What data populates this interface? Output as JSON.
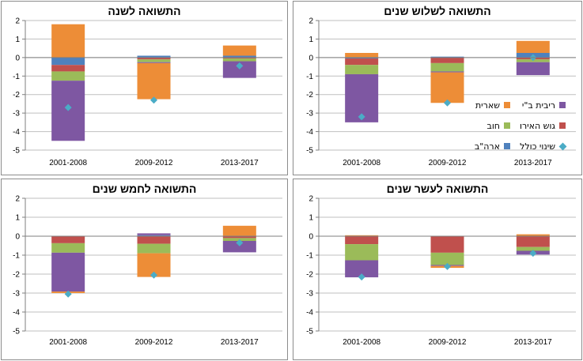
{
  "colors": {
    "residual": "#ED8D37",
    "interest": "#7E57A2",
    "euro_area": "#C0504D",
    "current_account": "#9BBB59",
    "usa": "#4F81BD",
    "total_change": "#4BACC6",
    "axis": "#7f7f7f",
    "grid": "#bfbfbf"
  },
  "legend": {
    "residual": "שארית",
    "interest": "ריבית ב\"י",
    "current_account": "חוב",
    "euro_area": "גוש האירו",
    "usa": "ארה\"ב",
    "total_change": "שינוי כולל"
  },
  "chart_data": [
    {
      "type": "bar",
      "title": "התשואה לשנה",
      "categories": [
        "2001-2008",
        "2009-2012",
        "2013-2017"
      ],
      "ylim": [
        -5,
        2
      ],
      "yticks": [
        "2",
        "1",
        "0",
        "-1",
        "-2",
        "-3",
        "-4",
        "-5"
      ],
      "stacked": true,
      "series": [
        {
          "key": "usa",
          "values": [
            -0.4,
            0.1,
            0.1
          ]
        },
        {
          "key": "euro_area",
          "values": [
            -0.35,
            -0.1,
            -0.05
          ]
        },
        {
          "key": "current_account",
          "values": [
            -0.5,
            -0.15,
            -0.15
          ]
        },
        {
          "key": "interest",
          "values": [
            -3.25,
            -0.05,
            -0.9
          ]
        },
        {
          "key": "residual",
          "values": [
            1.8,
            -1.95,
            0.55
          ]
        }
      ],
      "total": [
        -2.7,
        -2.3,
        -0.45
      ]
    },
    {
      "type": "bar",
      "title": "התשואה לשלוש שנים",
      "categories": [
        "2001-2008",
        "2009-2012",
        "2013-2017"
      ],
      "ylim": [
        -5,
        2
      ],
      "yticks": [
        "2",
        "1",
        "0",
        "-1",
        "-2",
        "-3",
        "-4",
        "-5"
      ],
      "stacked": true,
      "series": [
        {
          "key": "usa",
          "values": [
            -0.05,
            0.05,
            0.25
          ]
        },
        {
          "key": "euro_area",
          "values": [
            -0.35,
            -0.3,
            -0.1
          ]
        },
        {
          "key": "current_account",
          "values": [
            -0.5,
            -0.45,
            -0.15
          ]
        },
        {
          "key": "interest",
          "values": [
            -2.6,
            -0.05,
            -0.7
          ]
        },
        {
          "key": "residual",
          "values": [
            0.25,
            -1.65,
            0.65
          ]
        }
      ],
      "total": [
        -3.2,
        -2.45,
        0.0
      ]
    },
    {
      "type": "bar",
      "title": "התשואה לחמש שנים",
      "categories": [
        "2001-2008",
        "2009-2012",
        "2013-2017"
      ],
      "ylim": [
        -5,
        2
      ],
      "yticks": [
        "2",
        "1",
        "0",
        "-1",
        "-2",
        "-3",
        "-4",
        "-5"
      ],
      "stacked": true,
      "series": [
        {
          "key": "usa",
          "values": [
            -0.02,
            0.05,
            0.0
          ]
        },
        {
          "key": "euro_area",
          "values": [
            -0.35,
            -0.4,
            -0.1
          ]
        },
        {
          "key": "current_account",
          "values": [
            -0.5,
            -0.5,
            -0.15
          ]
        },
        {
          "key": "interest",
          "values": [
            -2.05,
            0.1,
            -0.6
          ]
        },
        {
          "key": "residual",
          "values": [
            -0.08,
            -1.25,
            0.55
          ]
        }
      ],
      "total": [
        -3.05,
        -2.05,
        -0.35
      ]
    },
    {
      "type": "bar",
      "title": "התשואה לעשר שנים",
      "categories": [
        "2001-2008",
        "2009-2012",
        "2013-2017"
      ],
      "ylim": [
        -5,
        2
      ],
      "yticks": [
        "2",
        "1",
        "0",
        "-1",
        "-2",
        "-3",
        "-4",
        "-5"
      ],
      "stacked": true,
      "series": [
        {
          "key": "usa",
          "values": [
            -0.02,
            -0.02,
            -0.02
          ]
        },
        {
          "key": "euro_area",
          "values": [
            -0.4,
            -0.85,
            -0.55
          ]
        },
        {
          "key": "current_account",
          "values": [
            -0.85,
            -0.65,
            -0.2
          ]
        },
        {
          "key": "interest",
          "values": [
            -0.9,
            -0.05,
            -0.2
          ]
        },
        {
          "key": "residual",
          "values": [
            0.05,
            -0.1,
            0.1
          ]
        }
      ],
      "total": [
        -2.15,
        -1.6,
        -0.9
      ]
    }
  ]
}
